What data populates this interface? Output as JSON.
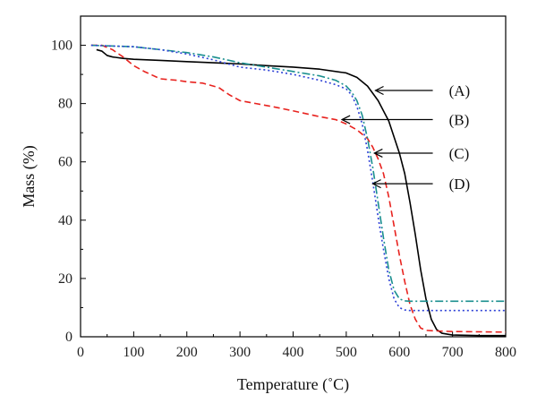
{
  "chart_data": {
    "type": "line",
    "title": "",
    "xlabel": "Temperature (˚C)",
    "ylabel": "Mass (%)",
    "xlim": [
      0,
      800
    ],
    "ylim": [
      0,
      110
    ],
    "xticks": [
      "0",
      "100",
      "200",
      "300",
      "400",
      "500",
      "600",
      "700",
      "800"
    ],
    "yticks": [
      "0",
      "20",
      "40",
      "60",
      "80",
      "100"
    ],
    "grid": false,
    "legend": "none",
    "series": [
      {
        "name": "(A)",
        "color": "#000000",
        "dash": "solid",
        "x": [
          30,
          40,
          50,
          60,
          80,
          100,
          150,
          200,
          250,
          300,
          350,
          400,
          450,
          500,
          520,
          540,
          560,
          580,
          600,
          610,
          620,
          630,
          640,
          650,
          660,
          670,
          680,
          700,
          750,
          800
        ],
        "y": [
          98.5,
          98,
          96.5,
          96,
          95.5,
          95.2,
          94.8,
          94.4,
          94,
          93.6,
          93,
          92.5,
          91.8,
          90.5,
          89,
          86,
          81,
          74,
          63,
          56,
          46,
          35,
          23,
          13,
          6,
          2.5,
          1.2,
          0.6,
          0.4,
          0.4
        ]
      },
      {
        "name": "(B)",
        "color": "#e8231f",
        "dash": "dashed",
        "x": [
          20,
          40,
          60,
          80,
          100,
          120,
          150,
          180,
          200,
          230,
          260,
          280,
          300,
          330,
          360,
          400,
          450,
          480,
          500,
          520,
          540,
          550,
          560,
          570,
          580,
          590,
          600,
          610,
          620,
          630,
          640,
          650,
          670,
          700,
          800
        ],
        "y": [
          100,
          100,
          98.5,
          96,
          93,
          91,
          88.5,
          88,
          87.5,
          87,
          85.5,
          83,
          81,
          80,
          79,
          77.5,
          75.5,
          74.5,
          73,
          71,
          68,
          65,
          61,
          56,
          48,
          38,
          28,
          19,
          11,
          6,
          3,
          2.2,
          2,
          1.8,
          1.6
        ]
      },
      {
        "name": "(C)",
        "color": "#1a8f8f",
        "dash": "dashdot",
        "x": [
          20,
          50,
          100,
          150,
          200,
          250,
          300,
          350,
          400,
          450,
          480,
          500,
          510,
          520,
          530,
          540,
          550,
          560,
          570,
          580,
          590,
          600,
          610,
          620,
          640,
          700,
          800
        ],
        "y": [
          100,
          99.8,
          99.5,
          98.5,
          97.5,
          96,
          94,
          92.5,
          91,
          89.5,
          88,
          86,
          84,
          81,
          76,
          68,
          58,
          46,
          34,
          23,
          16,
          13,
          12.3,
          12.2,
          12.2,
          12.2,
          12.2
        ]
      },
      {
        "name": "(D)",
        "color": "#2b3fd6",
        "dash": "dotted",
        "x": [
          20,
          50,
          100,
          150,
          200,
          250,
          300,
          350,
          400,
          450,
          480,
          500,
          510,
          520,
          530,
          540,
          550,
          560,
          570,
          580,
          590,
          600,
          610,
          620,
          640,
          700,
          800
        ],
        "y": [
          100,
          99.8,
          99.5,
          98.5,
          97,
          95,
          92.5,
          91.5,
          90,
          88,
          86.5,
          85,
          83,
          79,
          73,
          64,
          53,
          41,
          30,
          20,
          13,
          10,
          9.2,
          9,
          9,
          9,
          9
        ]
      }
    ],
    "annotations": [
      {
        "label": "(A)",
        "arrow_to": [
          555,
          84.5
        ],
        "label_at": [
          710,
          84.5
        ]
      },
      {
        "label": "(B)",
        "arrow_to": [
          492,
          74.5
        ],
        "label_at": [
          710,
          74.5
        ]
      },
      {
        "label": "(C)",
        "arrow_to": [
          553,
          63
        ],
        "label_at": [
          710,
          63
        ]
      },
      {
        "label": "(D)",
        "arrow_to": [
          550,
          52.5
        ],
        "label_at": [
          710,
          52.5
        ]
      }
    ]
  }
}
